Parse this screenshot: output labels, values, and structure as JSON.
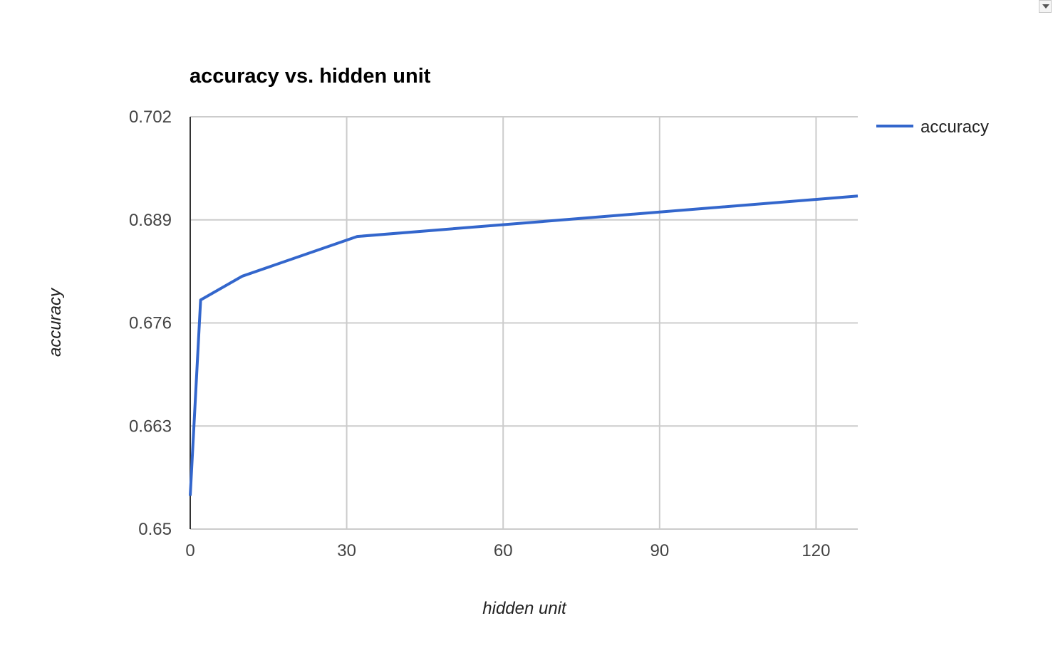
{
  "chart_data": {
    "type": "line",
    "title": "accuracy vs. hidden unit",
    "xlabel": "hidden unit",
    "ylabel": "accuracy",
    "xlim": [
      0,
      128
    ],
    "ylim": [
      0.65,
      0.702
    ],
    "x_ticks": [
      "0",
      "30",
      "60",
      "90",
      "120"
    ],
    "x_tick_values": [
      0,
      30,
      60,
      90,
      120
    ],
    "y_ticks": [
      "0.65",
      "0.663",
      "0.676",
      "0.689",
      "0.702"
    ],
    "y_tick_values": [
      0.65,
      0.663,
      0.676,
      0.689,
      0.702
    ],
    "grid": true,
    "legend_position": "right",
    "series": [
      {
        "name": "accuracy",
        "color": "#3366cc",
        "x": [
          0,
          2,
          10,
          32,
          128
        ],
        "y": [
          0.6542,
          0.6789,
          0.6819,
          0.6869,
          0.692
        ]
      }
    ]
  },
  "icons": {
    "menu": "dropdown-arrow-icon"
  }
}
